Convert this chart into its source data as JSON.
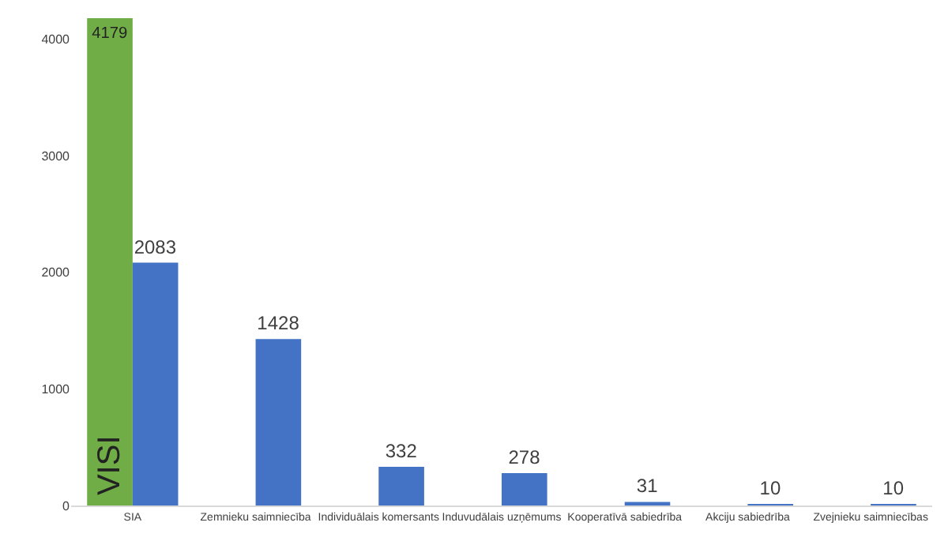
{
  "chart_data": {
    "type": "bar",
    "categories": [
      "SIA",
      "Zemnieku saimniecība",
      "Individuālais komersants",
      "Induvudālais uzņēmums",
      "Kooperatīvā sabiedrība",
      "Akciju sabiedrība",
      "Zvejnieku saimniecības"
    ],
    "series": [
      {
        "name": "VISI",
        "color": "#70ad47",
        "values": [
          4179,
          null,
          null,
          null,
          null,
          null,
          null
        ]
      },
      {
        "color": "#4472c4",
        "values": [
          2083,
          1428,
          332,
          278,
          31,
          10,
          10
        ]
      }
    ],
    "ylim": [
      0,
      4200
    ],
    "yticks": [
      0,
      1000,
      2000,
      3000,
      4000
    ],
    "legend": false,
    "data_labels": true
  }
}
